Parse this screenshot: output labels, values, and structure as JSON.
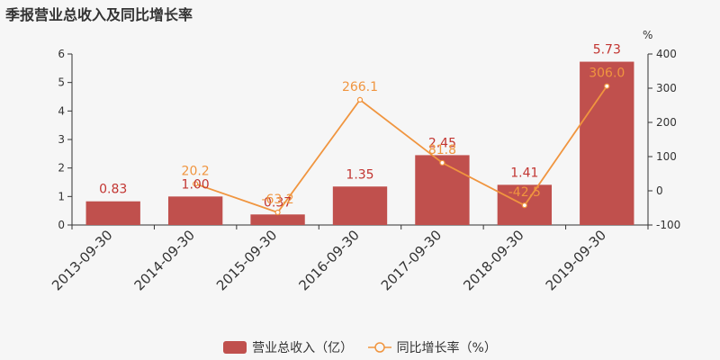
{
  "title": "季报营业总收入及同比增长率",
  "colors": {
    "bar": "#c0504d",
    "bar_label": "#c23531",
    "line": "#f0953f"
  },
  "chart_data": {
    "type": "bar",
    "categories": [
      "2013-09-30",
      "2014-09-30",
      "2015-09-30",
      "2016-09-30",
      "2017-09-30",
      "2018-09-30",
      "2019-09-30"
    ],
    "series": [
      {
        "name": "营业总收入（亿）",
        "type": "bar",
        "axis": "left",
        "values": [
          0.83,
          1.0,
          0.37,
          1.35,
          2.45,
          1.41,
          5.73
        ],
        "labels": [
          "0.83",
          "1.00",
          "0.37",
          "1.35",
          "2.45",
          "1.41",
          "5.73"
        ]
      },
      {
        "name": "同比增长率（%）",
        "type": "line",
        "axis": "right",
        "values": [
          null,
          20.2,
          -63.2,
          266.1,
          81.8,
          -42.5,
          306.0
        ],
        "labels": [
          "",
          "20.2",
          "-63.2",
          "266.1",
          "81.8",
          "-42.5",
          "306.0"
        ]
      }
    ],
    "y_left": {
      "lim": [
        0,
        6
      ],
      "ticks": [
        "0",
        "1",
        "2",
        "3",
        "4",
        "5",
        "6"
      ]
    },
    "y_right": {
      "lim": [
        -100,
        400
      ],
      "ticks": [
        "-100",
        "0",
        "100",
        "200",
        "300",
        "400"
      ],
      "unit": "%"
    },
    "legend": "bottom-center"
  }
}
